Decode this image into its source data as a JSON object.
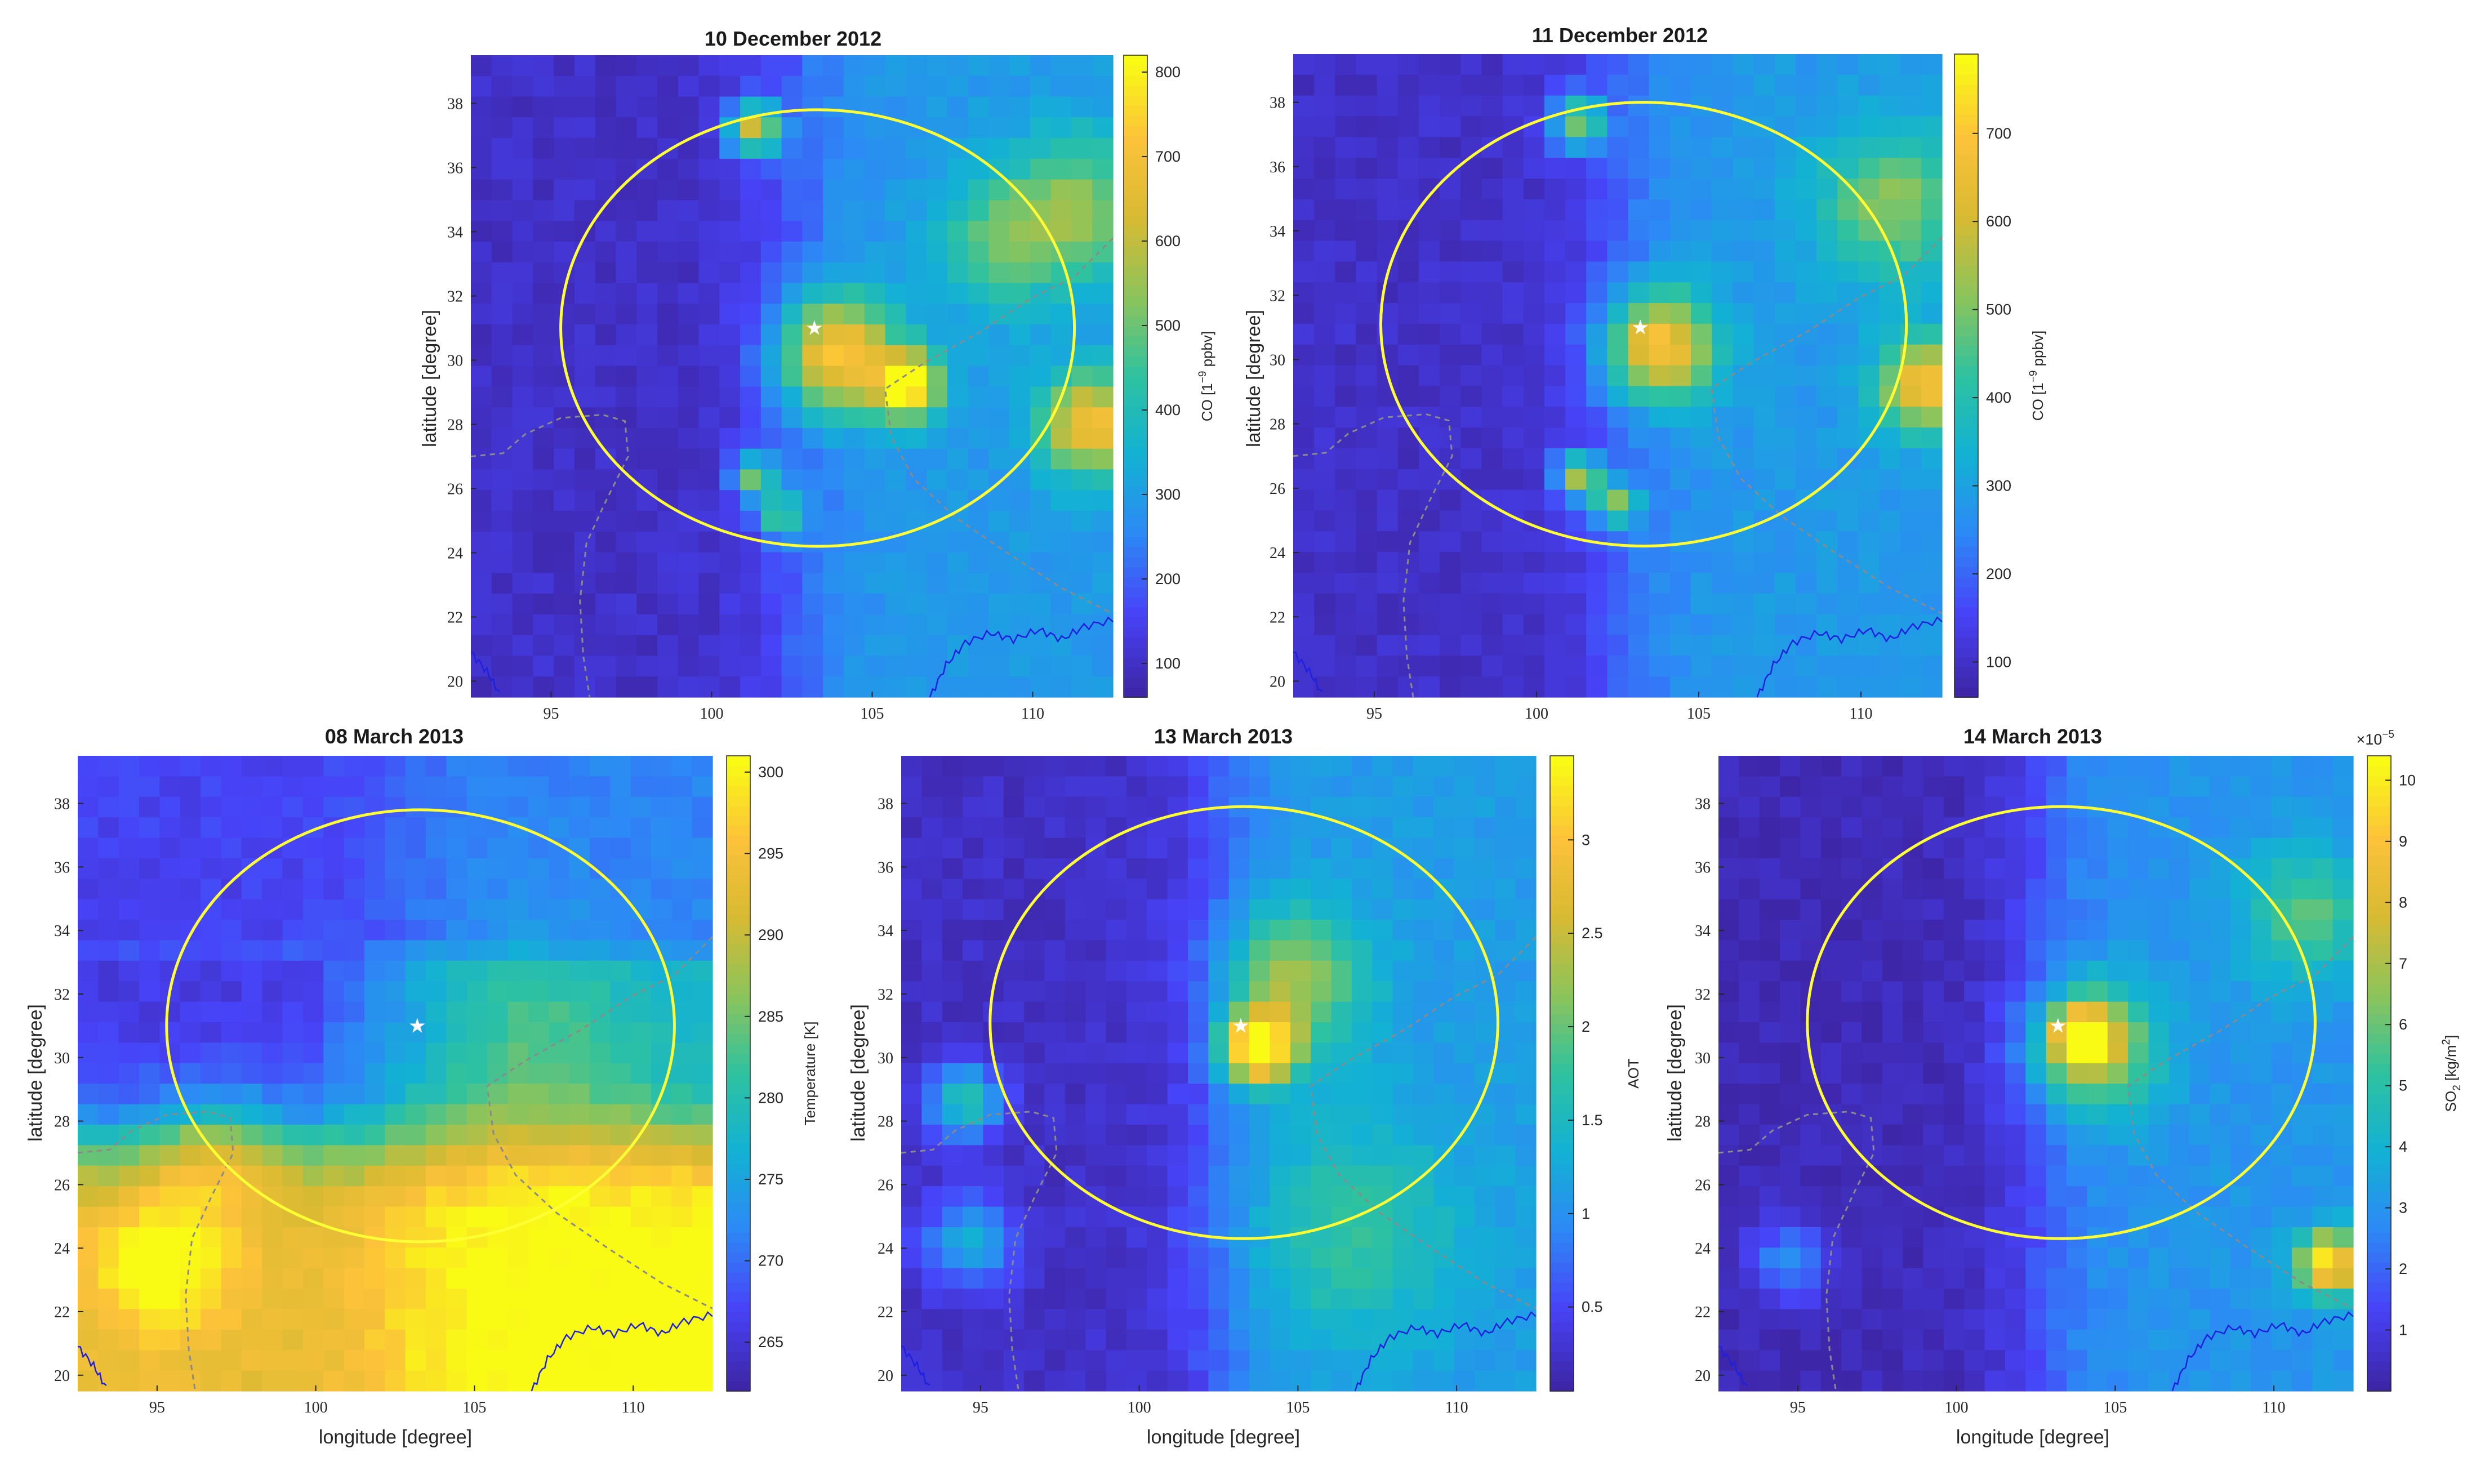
{
  "figure": {
    "star_symbol": "★",
    "overlay_circle_color": "#ffff33",
    "border_color": "#8a8a8a",
    "coast_color": "#1f1fe0",
    "colormap": [
      "#3e26a8",
      "#4743f8",
      "#2d89f5",
      "#13b1d4",
      "#2ec2a0",
      "#8cc45b",
      "#d7ba32",
      "#fcc23a",
      "#f9fb15"
    ]
  },
  "chart_data": [
    {
      "id": "p1",
      "type": "heatmap",
      "title": "10 December 2012",
      "xlabel": "",
      "ylabel": "latitude [degree]",
      "xlim": [
        92.5,
        112.5
      ],
      "ylim": [
        19.5,
        39.5
      ],
      "xticks": [
        "95",
        "100",
        "105",
        "110"
      ],
      "yticks": [
        "20",
        "22",
        "24",
        "26",
        "28",
        "30",
        "32",
        "34",
        "36",
        "38"
      ],
      "colorbar": {
        "label": "CO [1",
        "label_sup": "−9",
        "label_tail": " ppbv]",
        "min": 60,
        "max": 820,
        "ticks": [
          "100",
          "200",
          "300",
          "400",
          "500",
          "600",
          "700",
          "800"
        ]
      },
      "field": {
        "base": 140,
        "bg_east": 290,
        "bg_west": 95,
        "hotspots": [
          [
            103.8,
            30.2,
            620,
            1.3
          ],
          [
            106.1,
            29.2,
            700,
            0.7
          ],
          [
            101.3,
            37.2,
            620,
            0.6
          ],
          [
            101.3,
            26.4,
            520,
            0.5
          ],
          [
            102.1,
            25.2,
            460,
            0.5
          ],
          [
            111.8,
            28.0,
            560,
            1.1
          ],
          [
            111.5,
            34.8,
            380,
            1.6
          ],
          [
            109.0,
            33.6,
            320,
            1.4
          ]
        ]
      },
      "source_marker": {
        "lon": 103.2,
        "lat": 31.0
      },
      "circle": {
        "lon": 103.3,
        "lat": 31.0,
        "rlon": 8.0,
        "rlat": 6.8
      }
    },
    {
      "id": "p2",
      "type": "heatmap",
      "title": "11 December 2012",
      "xlabel": "",
      "ylabel": "latitude [degree]",
      "xlim": [
        92.5,
        112.5
      ],
      "ylim": [
        19.5,
        39.5
      ],
      "xticks": [
        "95",
        "100",
        "105",
        "110"
      ],
      "yticks": [
        "20",
        "22",
        "24",
        "26",
        "28",
        "30",
        "32",
        "34",
        "36",
        "38"
      ],
      "colorbar": {
        "label": "CO [1",
        "label_sup": "−9",
        "label_tail": " ppbv]",
        "min": 60,
        "max": 790,
        "ticks": [
          "100",
          "200",
          "300",
          "400",
          "500",
          "600",
          "700"
        ]
      },
      "field": {
        "base": 140,
        "bg_east": 280,
        "bg_west": 95,
        "hotspots": [
          [
            103.7,
            30.4,
            600,
            1.2
          ],
          [
            101.3,
            37.4,
            520,
            0.6
          ],
          [
            101.3,
            26.4,
            580,
            0.5
          ],
          [
            102.4,
            25.5,
            480,
            0.5
          ],
          [
            112.0,
            29.2,
            560,
            1.0
          ],
          [
            111.0,
            34.8,
            380,
            1.6
          ]
        ]
      },
      "source_marker": {
        "lon": 103.2,
        "lat": 31.0
      },
      "circle": {
        "lon": 103.3,
        "lat": 31.1,
        "rlon": 8.1,
        "rlat": 6.9
      }
    },
    {
      "id": "p3",
      "type": "heatmap",
      "title": "08 March 2013",
      "xlabel": "longitude [degree]",
      "ylabel": "latitude [degree]",
      "xlim": [
        92.5,
        112.5
      ],
      "ylim": [
        19.5,
        39.5
      ],
      "xticks": [
        "95",
        "100",
        "105",
        "110"
      ],
      "yticks": [
        "20",
        "22",
        "24",
        "26",
        "28",
        "30",
        "32",
        "34",
        "36",
        "38"
      ],
      "colorbar": {
        "label": "Temperature [K]",
        "label_sup": "",
        "label_tail": "",
        "min": 262,
        "max": 301,
        "ticks": [
          "265",
          "270",
          "275",
          "280",
          "285",
          "290",
          "295",
          "300"
        ]
      },
      "field": {
        "mode": "temperature",
        "hotspots": [
          [
            106.8,
            30.2,
            292,
            2.4
          ],
          [
            95.2,
            23.5,
            300,
            1.6
          ],
          [
            96.8,
            27.2,
            296,
            1.5
          ]
        ]
      },
      "source_marker": {
        "lon": 103.2,
        "lat": 31.0
      },
      "circle": {
        "lon": 103.3,
        "lat": 31.0,
        "rlon": 8.0,
        "rlat": 6.8
      }
    },
    {
      "id": "p4",
      "type": "heatmap",
      "title": "13 March 2013",
      "xlabel": "longitude [degree]",
      "ylabel": "latitude [degree]",
      "xlim": [
        92.5,
        112.5
      ],
      "ylim": [
        19.5,
        39.5
      ],
      "xticks": [
        "95",
        "100",
        "105",
        "110"
      ],
      "yticks": [
        "20",
        "22",
        "24",
        "26",
        "28",
        "30",
        "32",
        "34",
        "36",
        "38"
      ],
      "colorbar": {
        "label": "AOT",
        "label_sup": "",
        "label_tail": "",
        "min": 0.05,
        "max": 3.45,
        "ticks": [
          "0.5",
          "1",
          "1.5",
          "2",
          "2.5",
          "3"
        ]
      },
      "field": {
        "base": 0.45,
        "bg_east": 1.1,
        "bg_west": 0.2,
        "hotspots": [
          [
            103.7,
            30.3,
            3.2,
            0.8
          ],
          [
            104.8,
            32.5,
            1.7,
            1.6
          ],
          [
            94.5,
            28.6,
            1.9,
            0.8
          ],
          [
            94.6,
            24.2,
            1.5,
            1.0
          ],
          [
            106.5,
            24.5,
            1.1,
            2.5
          ]
        ]
      },
      "source_marker": {
        "lon": 103.2,
        "lat": 31.0
      },
      "circle": {
        "lon": 103.3,
        "lat": 31.1,
        "rlon": 8.0,
        "rlat": 6.8
      }
    },
    {
      "id": "p5",
      "type": "heatmap",
      "title": "14 March 2013",
      "xlabel": "longitude [degree]",
      "ylabel": "latitude [degree]",
      "xlim": [
        92.5,
        112.5
      ],
      "ylim": [
        19.5,
        39.5
      ],
      "xticks": [
        "95",
        "100",
        "105",
        "110"
      ],
      "yticks": [
        "20",
        "22",
        "24",
        "26",
        "28",
        "30",
        "32",
        "34",
        "36",
        "38"
      ],
      "colorbar": {
        "label": "SO",
        "label_sub": "2",
        "label_tail": " [kg/m",
        "label_sup": "2",
        "label_end": "]",
        "exponent_base": "×10",
        "exponent_value": "−5",
        "min": 0,
        "max": 10.4,
        "ticks": [
          "1",
          "2",
          "3",
          "4",
          "5",
          "6",
          "7",
          "8",
          "9",
          "10"
        ]
      },
      "field": {
        "base": 1.4,
        "bg_east": 3.0,
        "bg_west": 0.2,
        "hotspots": [
          [
            104.2,
            30.3,
            6.6,
            1.4
          ],
          [
            103.9,
            30.7,
            8.3,
            0.55
          ],
          [
            94.7,
            23.6,
            3.8,
            0.9
          ],
          [
            111.7,
            23.5,
            8.5,
            0.7
          ],
          [
            111.0,
            34.5,
            4.2,
            1.4
          ]
        ]
      },
      "source_marker": {
        "lon": 103.2,
        "lat": 31.0
      },
      "circle": {
        "lon": 103.3,
        "lat": 31.1,
        "rlon": 8.0,
        "rlat": 6.8
      }
    }
  ]
}
